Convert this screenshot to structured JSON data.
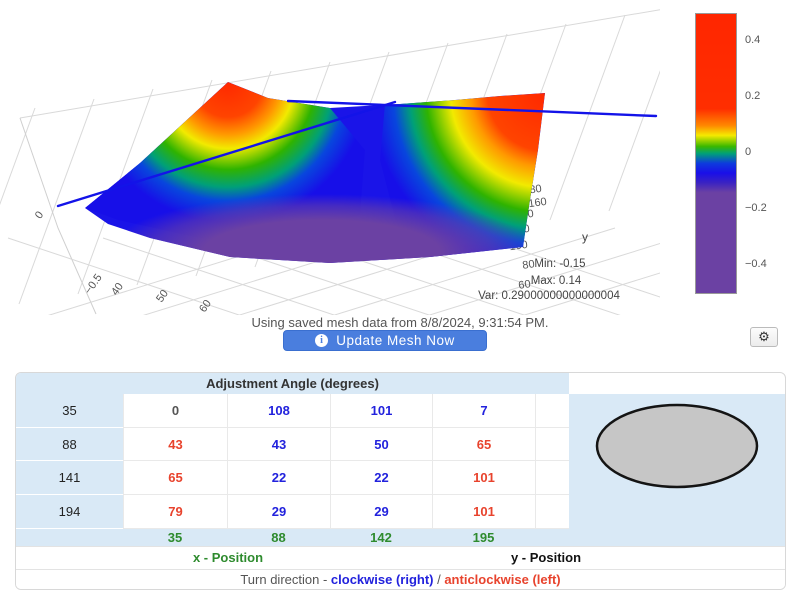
{
  "plot": {
    "z_tick_left": "0",
    "bottom_ticks": [
      "−0.5",
      "40",
      "50",
      "60"
    ],
    "y_ticks": [
      "180",
      "160",
      "140",
      "120",
      "100",
      "80",
      "60"
    ],
    "y_axis_label": "y",
    "stats": {
      "min_label": "Min: -0.15",
      "max_label": "Max: 0.14",
      "var_label": "Var: 0.29000000000000004"
    },
    "colorbar_ticks": [
      "0.4",
      "0.2",
      "0",
      "−0.2",
      "−0.4"
    ]
  },
  "chart_data": {
    "type": "surface",
    "title": "",
    "x_axis": {
      "ticks": [
        40,
        50,
        60
      ]
    },
    "y_axis": {
      "label": "y",
      "ticks": [
        180,
        160,
        140,
        120,
        100,
        80,
        60
      ]
    },
    "z_axis": {
      "ticks": [
        -0.5,
        0
      ],
      "range": [
        -0.5,
        0.5
      ]
    },
    "colorbar": {
      "ticks": [
        0.4,
        0.2,
        0,
        -0.2,
        -0.4
      ],
      "range": [
        -0.5,
        0.5
      ],
      "scale_top_to_bottom": [
        "#ff2600",
        "#f5ea00",
        "#39b800",
        "#1a0fe8",
        "#6b41a3"
      ]
    },
    "stats": {
      "min": -0.15,
      "max": 0.14,
      "variance": 0.29000000000000004
    },
    "description": "3D mesh surface; red peaks at front-left and front-right corners descending through yellow and green into a deep blue valley with a purple basin at the center; blue wireframe edge lines along the mesh boundary."
  },
  "status": {
    "text": "Using saved mesh data from 8/8/2024, 9:31:54 PM."
  },
  "update_button": {
    "label": "Update Mesh Now",
    "icon": "info"
  },
  "settings_button": {
    "icon": "gear",
    "glyph": "⚙"
  },
  "table": {
    "header": "Adjustment Angle (degrees)",
    "rows": [
      {
        "label": "35",
        "cells": [
          {
            "v": "0",
            "c": "neutral"
          },
          {
            "v": "108",
            "c": "blue"
          },
          {
            "v": "101",
            "c": "blue"
          },
          {
            "v": "7",
            "c": "blue"
          }
        ]
      },
      {
        "label": "88",
        "cells": [
          {
            "v": "43",
            "c": "red"
          },
          {
            "v": "43",
            "c": "blue"
          },
          {
            "v": "50",
            "c": "blue"
          },
          {
            "v": "65",
            "c": "red"
          }
        ]
      },
      {
        "label": "141",
        "cells": [
          {
            "v": "65",
            "c": "red"
          },
          {
            "v": "22",
            "c": "blue"
          },
          {
            "v": "22",
            "c": "blue"
          },
          {
            "v": "101",
            "c": "red"
          }
        ]
      },
      {
        "label": "194",
        "cells": [
          {
            "v": "79",
            "c": "red"
          },
          {
            "v": "29",
            "c": "blue"
          },
          {
            "v": "29",
            "c": "blue"
          },
          {
            "v": "101",
            "c": "red"
          }
        ]
      }
    ],
    "footer": [
      "35",
      "88",
      "142",
      "195"
    ],
    "x_position_label": "x - Position",
    "y_position_label": "y - Position",
    "turn": {
      "prefix": "Turn direction - ",
      "clockwise": "clockwise (right)",
      "separator": " / ",
      "anticlockwise": "anticlockwise (left)"
    }
  },
  "colors": {
    "accent_button_blue": "#4a7ede",
    "cell_blue": "#2222dd",
    "cell_red": "#e8432d",
    "footer_green": "#2e8b2e",
    "table_light_blue": "#d9e9f6",
    "ellipse_fill": "#c6c6c6"
  }
}
